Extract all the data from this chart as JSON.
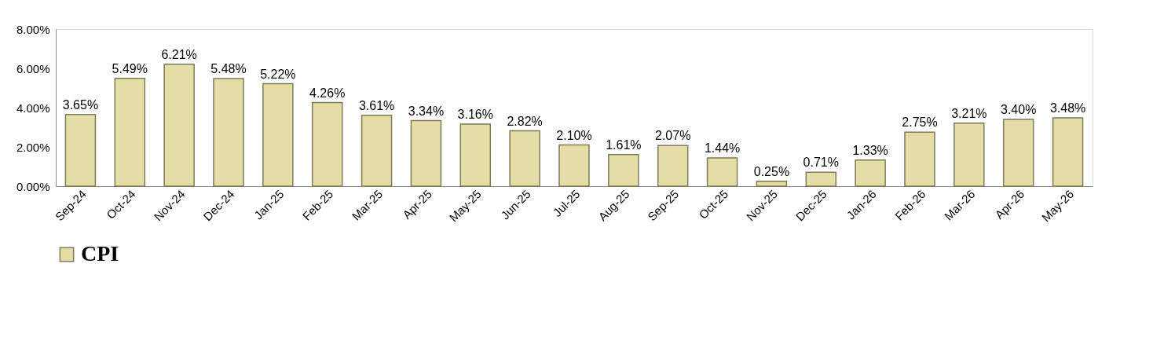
{
  "chart_data": {
    "type": "bar",
    "categories": [
      "Sep-24",
      "Oct-24",
      "Nov-24",
      "Dec-24",
      "Jan-25",
      "Feb-25",
      "Mar-25",
      "Apr-25",
      "May-25",
      "Jun-25",
      "Jul-25",
      "Aug-25",
      "Sep-25",
      "Oct-25",
      "Nov-25",
      "Dec-25",
      "Jan-26",
      "Feb-26",
      "Mar-26",
      "Apr-26",
      "May-26"
    ],
    "series": [
      {
        "name": "CPI",
        "color": "#e4dea6",
        "values": [
          3.65,
          5.49,
          6.21,
          5.48,
          5.22,
          4.26,
          3.61,
          3.34,
          3.16,
          2.82,
          2.1,
          1.61,
          2.07,
          1.44,
          0.25,
          0.71,
          1.33,
          2.75,
          3.21,
          3.4,
          3.48
        ],
        "value_labels": [
          "3.65%",
          "5.49%",
          "6.21%",
          "5.48%",
          "5.22%",
          "4.26%",
          "3.61%",
          "3.34%",
          "3.16%",
          "2.82%",
          "2.10%",
          "1.61%",
          "2.07%",
          "1.44%",
          "0.25%",
          "0.71%",
          "1.33%",
          "2.75%",
          "3.21%",
          "3.40%",
          "3.48%"
        ]
      }
    ],
    "ylim": [
      0,
      8
    ],
    "yticks": [
      {
        "value": 0,
        "label": "0.00%"
      },
      {
        "value": 2,
        "label": "2.00%"
      },
      {
        "value": 4,
        "label": "4.00%"
      },
      {
        "value": 6,
        "label": "6.00%"
      },
      {
        "value": 8,
        "label": "8.00%"
      }
    ],
    "grid": false,
    "legend": "bottom"
  }
}
